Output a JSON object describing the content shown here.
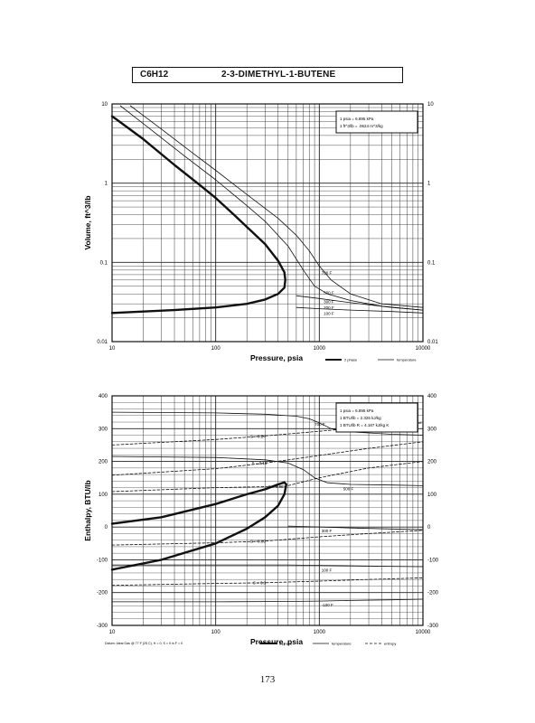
{
  "header": {
    "formula": "C6H12",
    "name": "2-3-DIMETHYL-1-BUTENE"
  },
  "page_number": "173",
  "chart_data": [
    {
      "type": "line",
      "x_scale": "log",
      "y_scale": "log",
      "xlim": [
        10,
        10000
      ],
      "ylim": [
        0.01,
        10
      ],
      "xlabel": "Pressure,  psia",
      "ylabel": "Volume, ft^3/lb",
      "x_ticks": [
        "10",
        "100",
        "1000",
        "10000"
      ],
      "y_ticks": [
        "0.01",
        "0.1",
        "1",
        "10"
      ],
      "grid": true,
      "conversion_box": [
        "1 psia  =  6.895 kPa",
        "1 ft^3/lb  =  .0624 m^3/kg"
      ],
      "legend": [
        {
          "label": "2 phase",
          "style": "thick"
        },
        {
          "label": "temperature",
          "style": "thin"
        }
      ],
      "series": [
        {
          "role": "2 phase",
          "style": "thick",
          "x": [
            10,
            20,
            40,
            70,
            100,
            150,
            200,
            300,
            400,
            460,
            470,
            460,
            400,
            300,
            200,
            100,
            40,
            10
          ],
          "y": [
            7,
            3.6,
            1.7,
            0.95,
            0.65,
            0.4,
            0.28,
            0.17,
            0.105,
            0.075,
            0.06,
            0.048,
            0.04,
            0.034,
            0.03,
            0.027,
            0.025,
            0.023
          ]
        },
        {
          "name": "700 F",
          "style": "thin",
          "x": [
            15,
            30,
            60,
            100,
            200,
            400,
            600,
            800,
            1000,
            1300,
            2000,
            4000,
            10000
          ],
          "y": [
            9.5,
            4.8,
            2.4,
            1.45,
            0.72,
            0.36,
            0.22,
            0.14,
            0.09,
            0.06,
            0.04,
            0.03,
            0.027
          ]
        },
        {
          "name": "500 F",
          "style": "thin",
          "x": [
            12,
            25,
            50,
            100,
            200,
            300,
            500,
            700,
            900,
            1200,
            2000,
            4000,
            10000
          ],
          "y": [
            9.5,
            4.5,
            2.2,
            1.1,
            0.52,
            0.33,
            0.16,
            0.08,
            0.05,
            0.04,
            0.033,
            0.028,
            0.025
          ]
        },
        {
          "name": "300 F",
          "style": "thin",
          "x": [
            600,
            1000,
            2000,
            5000,
            10000
          ],
          "y": [
            0.038,
            0.035,
            0.031,
            0.027,
            0.025
          ]
        },
        {
          "name": "100 F",
          "style": "thin",
          "x": [
            600,
            1000,
            2000,
            5000,
            10000
          ],
          "y": [
            0.027,
            0.026,
            0.025,
            0.024,
            0.023
          ]
        }
      ],
      "temperature_labels": [
        {
          "text": "700 F",
          "x": 1050,
          "y": 0.075
        },
        {
          "text": "500 F",
          "x": 1100,
          "y": 0.042
        },
        {
          "text": "300 F",
          "x": 1100,
          "y": 0.032
        },
        {
          "text": "200 F",
          "x": 1100,
          "y": 0.027
        },
        {
          "text": "100 F",
          "x": 1100,
          "y": 0.023
        }
      ]
    },
    {
      "type": "line",
      "x_scale": "log",
      "y_scale": "linear",
      "xlim": [
        10,
        10000
      ],
      "ylim": [
        -300,
        400
      ],
      "xlabel": "Pressure,  psia",
      "ylabel": "Enthalpy, BTU/lb",
      "x_ticks": [
        "10",
        "100",
        "1000",
        "10000"
      ],
      "y_ticks": [
        "-300",
        "-200",
        "-100",
        "0",
        "100",
        "200",
        "300",
        "400"
      ],
      "grid": true,
      "conversion_box": [
        "1 psia  =  6.895 kPa",
        "1 BTU/lb  =  2.326 kJ/kg",
        "1 BTU/lb R  =  4.187 kJ/kg K"
      ],
      "footnote": "Datum: Ideal Gas @ 77 F (25 C),  H = 0,  S = 0 in F = 0",
      "legend": [
        {
          "label": "2 phase",
          "style": "thick"
        },
        {
          "label": "temperature",
          "style": "thin"
        },
        {
          "label": "entropy",
          "style": "dashed"
        }
      ],
      "series": [
        {
          "role": "2 phase",
          "style": "thick",
          "x": [
            10,
            30,
            100,
            200,
            300,
            400,
            460,
            480,
            460,
            400,
            300,
            200,
            100,
            30,
            10
          ],
          "y": [
            -130,
            -100,
            -50,
            -5,
            30,
            65,
            100,
            130,
            136,
            130,
            115,
            100,
            70,
            30,
            10
          ]
        },
        {
          "name": "700 F",
          "style": "thin",
          "x": [
            10,
            100,
            300,
            600,
            800,
            1000,
            1300,
            2000,
            5000,
            10000
          ],
          "y": [
            350,
            348,
            344,
            338,
            330,
            318,
            300,
            290,
            283,
            280
          ]
        },
        {
          "name": "500 F",
          "style": "thin",
          "x": [
            10,
            100,
            300,
            500,
            700,
            900,
            1200,
            2000,
            5000,
            10000
          ],
          "y": [
            215,
            212,
            205,
            195,
            175,
            150,
            135,
            130,
            128,
            126
          ]
        },
        {
          "name": "300 F",
          "style": "thin",
          "x": [
            500,
            1000,
            2000,
            5000,
            10000
          ],
          "y": [
            3,
            0,
            -3,
            -6,
            -8
          ]
        },
        {
          "name": "100 F",
          "style": "thin",
          "x": [
            10,
            100,
            500,
            1000,
            2000,
            5000,
            10000
          ],
          "y": [
            -116,
            -116,
            -116,
            -117,
            -118,
            -120,
            -121
          ]
        },
        {
          "name": "-100 F",
          "style": "thin",
          "x": [
            10,
            100,
            500,
            1000,
            2000,
            5000,
            10000
          ],
          "y": [
            -228,
            -228,
            -227,
            -226,
            -224,
            -222,
            -220
          ]
        },
        {
          "name": "S = 0.24",
          "style": "dashed",
          "x": [
            10,
            100,
            300,
            1000,
            3000,
            10000
          ],
          "y": [
            250,
            267,
            278,
            292,
            305,
            318
          ]
        },
        {
          "name": "S = 0.15",
          "style": "dashed",
          "x": [
            10,
            100,
            300,
            1000,
            3000,
            10000
          ],
          "y": [
            158,
            178,
            195,
            218,
            240,
            260
          ]
        },
        {
          "name": "S = 0.12",
          "style": "dashed",
          "x": [
            10,
            100,
            470,
            1000,
            3000,
            10000
          ],
          "y": [
            108,
            120,
            124,
            150,
            180,
            200
          ]
        },
        {
          "name": "S = 0.09",
          "style": "dashed",
          "x": [
            10,
            100,
            300,
            1000,
            3000,
            10000
          ],
          "y": [
            -55,
            -48,
            -43,
            -30,
            -20,
            -10
          ]
        },
        {
          "name": "S = 0.3",
          "style": "dashed",
          "x": [
            10,
            100,
            300,
            1000,
            3000,
            10000
          ],
          "y": [
            -178,
            -172,
            -170,
            -165,
            -160,
            -155
          ]
        }
      ],
      "temperature_labels": [
        {
          "text": "700 F",
          "x": 900,
          "y": 315
        },
        {
          "text": "500 F",
          "x": 1700,
          "y": 117
        },
        {
          "text": "300 F",
          "x": 1050,
          "y": -10
        },
        {
          "text": "100 F",
          "x": 1050,
          "y": -130
        },
        {
          "text": "-100 F",
          "x": 1050,
          "y": -237
        }
      ],
      "entropy_labels": [
        {
          "text": "S = 0.24",
          "x": 350,
          "y": 278
        },
        {
          "text": "S = 0.15",
          "x": 360,
          "y": 196
        },
        {
          "text": "S = 0.12",
          "x": 520,
          "y": 124
        },
        {
          "text": "S = 0.09",
          "x": 350,
          "y": -42
        },
        {
          "text": "S = 0.3",
          "x": 370,
          "y": -169
        }
      ]
    }
  ]
}
